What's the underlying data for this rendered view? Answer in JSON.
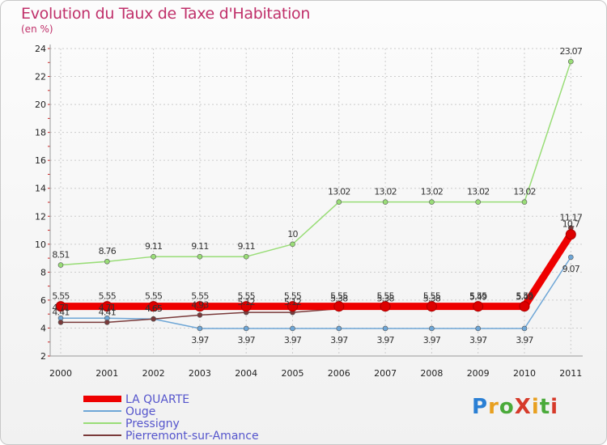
{
  "title": "Evolution du Taux de Taxe d'Habitation",
  "subtitle": "(en %)",
  "logo": {
    "text": "ProXiti",
    "colors": [
      "#2a7fd4",
      "#e8a020",
      "#4aaa3a",
      "#d63a2a",
      "#e8a020",
      "#4aaa3a",
      "#d63a2a"
    ]
  },
  "chart_data": {
    "type": "line",
    "title": "Evolution du Taux de Taxe d'Habitation",
    "ylabel": "(en %)",
    "x": [
      "2000",
      "2001",
      "2002",
      "2003",
      "2004",
      "2005",
      "2006",
      "2007",
      "2008",
      "2009",
      "2010",
      "2011"
    ],
    "ylim": [
      2,
      24
    ],
    "yticks": [
      2,
      4,
      6,
      8,
      10,
      12,
      14,
      16,
      18,
      20,
      22,
      24
    ],
    "legend_position": "bottom-left",
    "series": [
      {
        "name": "LA QUARTE",
        "color": "#ee0000",
        "bold": true,
        "values": [
          5.55,
          5.55,
          5.55,
          5.55,
          5.55,
          5.55,
          5.55,
          5.55,
          5.55,
          5.55,
          5.55,
          10.7
        ],
        "labels": [
          "5.55",
          "5.55",
          "5.55",
          "5.55",
          "5.55",
          "5.55",
          "5.55",
          "5.55",
          "5.55",
          "5.55",
          "5.55",
          "10.7"
        ]
      },
      {
        "name": "Ouge",
        "color": "#6ea6d6",
        "bold": false,
        "values": [
          4.71,
          4.71,
          4.65,
          3.97,
          3.97,
          3.97,
          3.97,
          3.97,
          3.97,
          3.97,
          3.97,
          9.07
        ],
        "labels": [
          "4.71",
          "4.71",
          "4.65",
          "3.97",
          "3.97",
          "3.97",
          "3.97",
          "3.97",
          "3.97",
          "3.97",
          "3.97",
          "9.07"
        ]
      },
      {
        "name": "Pressigny",
        "color": "#99dd77",
        "bold": false,
        "values": [
          8.51,
          8.76,
          9.11,
          9.11,
          9.11,
          10,
          13.02,
          13.02,
          13.02,
          13.02,
          13.02,
          23.07
        ],
        "labels": [
          "8.51",
          "8.76",
          "9.11",
          "9.11",
          "9.11",
          "10",
          "13.02",
          "13.02",
          "13.02",
          "13.02",
          "13.02",
          "23.07"
        ]
      },
      {
        "name": "Pierremont-sur-Amance",
        "color": "#7a3a3a",
        "bold": false,
        "values": [
          4.41,
          4.41,
          4.65,
          4.93,
          5.12,
          5.12,
          5.38,
          5.38,
          5.38,
          5.49,
          5.49,
          11.17
        ],
        "labels": [
          "4.41",
          "4.41",
          "4.65",
          "4.93",
          "5.12",
          "5.12",
          "5.38",
          "5.38",
          "5.38",
          "5.49",
          "5.49",
          "11.17"
        ]
      }
    ]
  }
}
